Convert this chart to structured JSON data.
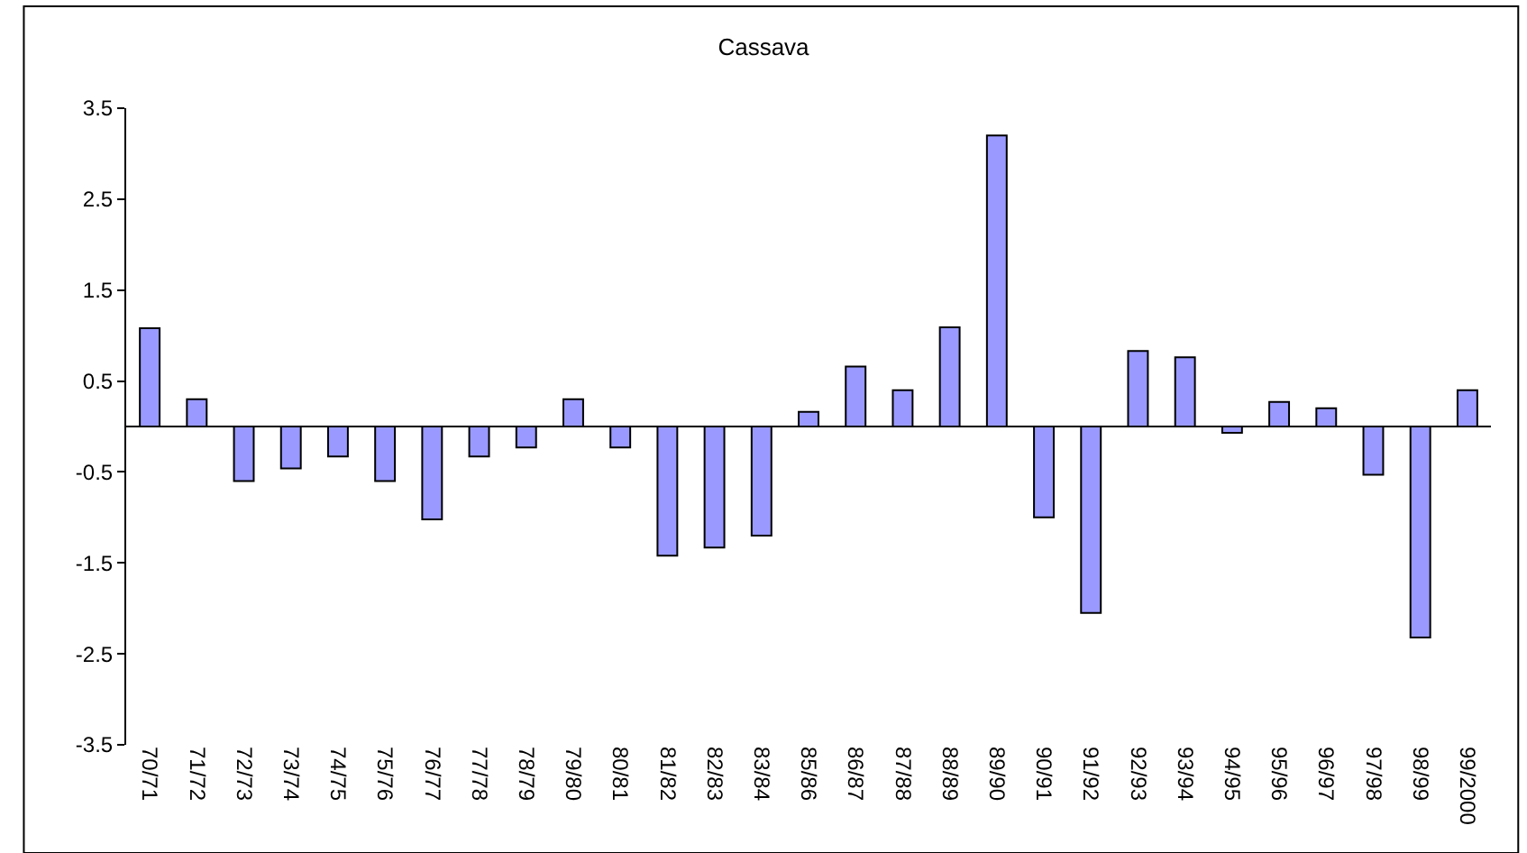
{
  "chart_data": {
    "type": "bar",
    "title": "Cassava",
    "categories": [
      "70/71",
      "71/72",
      "72/73",
      "73/74",
      "74/75",
      "75/76",
      "76/77",
      "77/78",
      "78/79",
      "79/80",
      "80/81",
      "81/82",
      "82/83",
      "83/84",
      "85/86",
      "86/87",
      "87/88",
      "88/89",
      "89/90",
      "90/91",
      "91/92",
      "92/93",
      "93/94",
      "94/95",
      "95/96",
      "96/97",
      "97/98",
      "98/99",
      "99/2000"
    ],
    "values": [
      1.08,
      0.3,
      -0.6,
      -0.46,
      -0.33,
      -0.6,
      -1.02,
      -0.33,
      -0.23,
      0.3,
      -0.23,
      -1.42,
      -1.33,
      -1.2,
      0.16,
      0.66,
      0.4,
      1.09,
      3.2,
      -1.0,
      -2.05,
      0.83,
      0.76,
      -0.07,
      0.27,
      0.2,
      -0.53,
      -2.32,
      0.4
    ],
    "color": "#9999ff",
    "ylim": [
      -3.5,
      3.5
    ],
    "yticks": [
      -3.5,
      -2.5,
      -1.5,
      -0.5,
      0.5,
      1.5,
      2.5,
      3.5
    ],
    "legend": false
  }
}
